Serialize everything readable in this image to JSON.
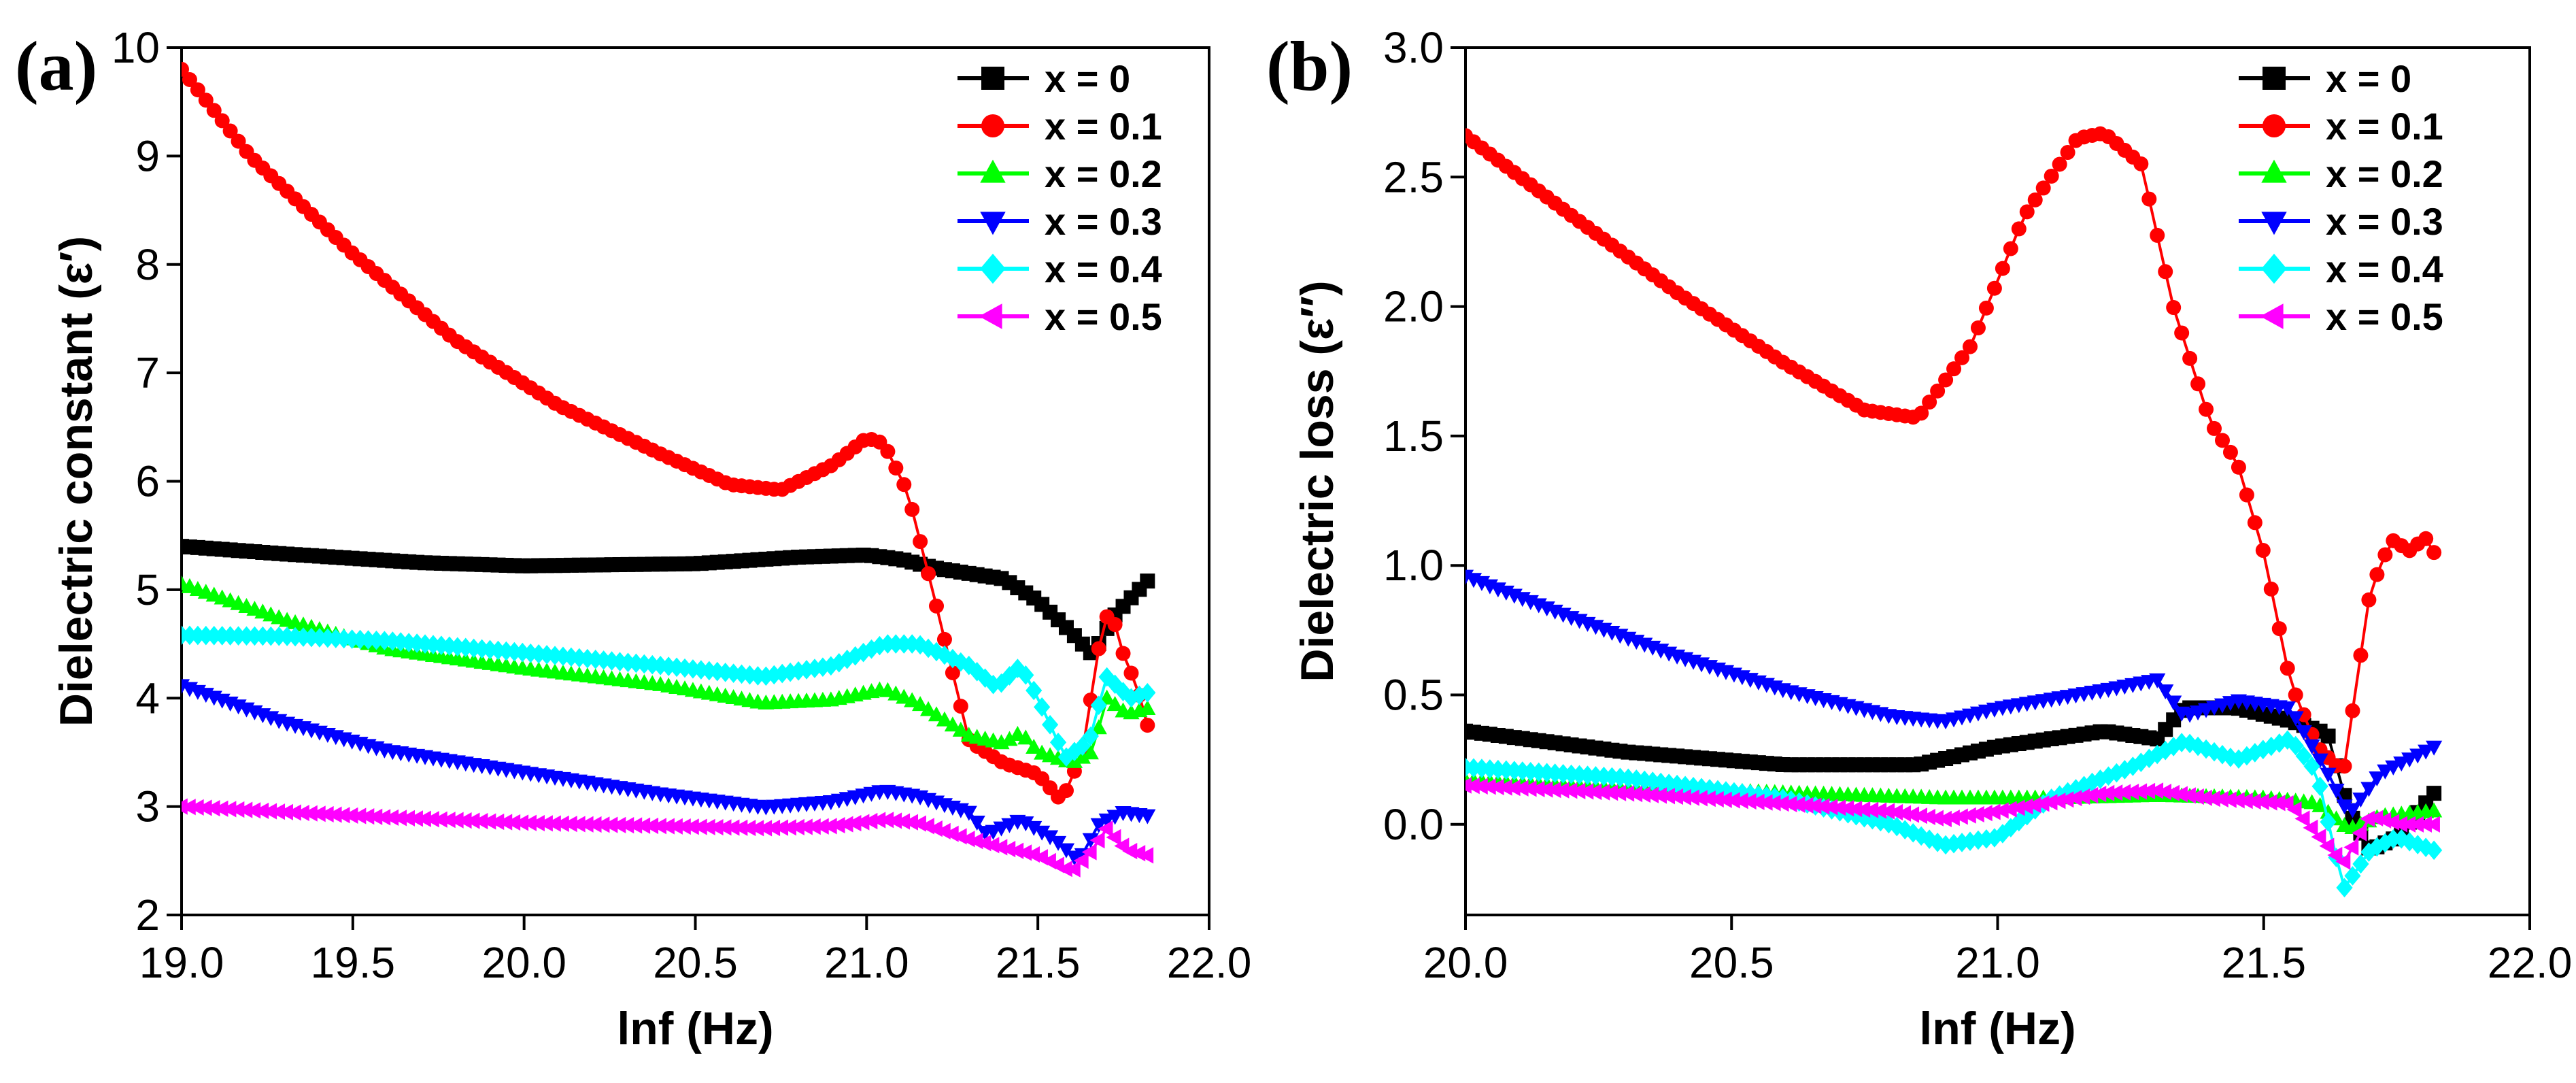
{
  "chart_data": [
    {
      "type": "line",
      "panel_label": "(a)",
      "title": "",
      "xlabel": "lnf (Hz)",
      "ylabel": "Dielectric constant (ε′)",
      "xlim": [
        19.0,
        22.0
      ],
      "ylim": [
        2,
        10
      ],
      "xticks": [
        "19.0",
        "19.5",
        "20.0",
        "20.5",
        "21.0",
        "21.5",
        "22.0"
      ],
      "yticks": [
        "2",
        "3",
        "4",
        "5",
        "6",
        "7",
        "8",
        "9",
        "10"
      ],
      "legend_position": "top-right",
      "x_start": 19.0,
      "x_end": 21.82,
      "n_points": 120,
      "series": [
        {
          "name": "x = 0",
          "color": "#000000",
          "marker": "square",
          "points": [
            [
              19.0,
              5.4
            ],
            [
              19.3,
              5.33
            ],
            [
              19.7,
              5.25
            ],
            [
              20.0,
              5.22
            ],
            [
              20.5,
              5.24
            ],
            [
              20.8,
              5.3
            ],
            [
              21.0,
              5.32
            ],
            [
              21.1,
              5.28
            ],
            [
              21.2,
              5.2
            ],
            [
              21.3,
              5.15
            ],
            [
              21.4,
              5.1
            ],
            [
              21.5,
              4.9
            ],
            [
              21.6,
              4.6
            ],
            [
              21.66,
              4.4
            ],
            [
              21.72,
              4.75
            ],
            [
              21.78,
              4.95
            ],
            [
              21.82,
              5.08
            ]
          ]
        },
        {
          "name": "x = 0.1",
          "color": "#ff0000",
          "marker": "circle",
          "points": [
            [
              19.0,
              9.8
            ],
            [
              19.2,
              9.0
            ],
            [
              19.5,
              8.1
            ],
            [
              19.8,
              7.3
            ],
            [
              20.1,
              6.7
            ],
            [
              20.4,
              6.25
            ],
            [
              20.6,
              5.97
            ],
            [
              20.75,
              5.92
            ],
            [
              20.9,
              6.15
            ],
            [
              21.0,
              6.4
            ],
            [
              21.05,
              6.35
            ],
            [
              21.12,
              5.9
            ],
            [
              21.2,
              4.9
            ],
            [
              21.3,
              3.6
            ],
            [
              21.4,
              3.4
            ],
            [
              21.5,
              3.3
            ],
            [
              21.57,
              3.05
            ],
            [
              21.63,
              3.5
            ],
            [
              21.68,
              4.5
            ],
            [
              21.71,
              4.85
            ],
            [
              21.75,
              4.4
            ],
            [
              21.79,
              4.1
            ],
            [
              21.82,
              3.75
            ]
          ]
        },
        {
          "name": "x = 0.2",
          "color": "#00ff00",
          "marker": "triangle-up",
          "points": [
            [
              19.0,
              5.05
            ],
            [
              19.3,
              4.72
            ],
            [
              19.6,
              4.45
            ],
            [
              20.0,
              4.27
            ],
            [
              20.4,
              4.12
            ],
            [
              20.7,
              3.95
            ],
            [
              20.9,
              3.98
            ],
            [
              21.05,
              4.08
            ],
            [
              21.15,
              3.95
            ],
            [
              21.3,
              3.65
            ],
            [
              21.4,
              3.58
            ],
            [
              21.45,
              3.68
            ],
            [
              21.5,
              3.5
            ],
            [
              21.6,
              3.4
            ],
            [
              21.66,
              3.5
            ],
            [
              21.7,
              4.0
            ],
            [
              21.76,
              3.85
            ],
            [
              21.82,
              3.9
            ]
          ]
        },
        {
          "name": "x = 0.3",
          "color": "#0000ff",
          "marker": "triangle-down",
          "points": [
            [
              19.0,
              4.12
            ],
            [
              19.3,
              3.78
            ],
            [
              19.6,
              3.52
            ],
            [
              20.0,
              3.32
            ],
            [
              20.4,
              3.12
            ],
            [
              20.7,
              3.0
            ],
            [
              20.9,
              3.05
            ],
            [
              21.05,
              3.15
            ],
            [
              21.15,
              3.1
            ],
            [
              21.3,
              2.95
            ],
            [
              21.35,
              2.75
            ],
            [
              21.45,
              2.88
            ],
            [
              21.55,
              2.7
            ],
            [
              21.62,
              2.5
            ],
            [
              21.68,
              2.85
            ],
            [
              21.75,
              2.95
            ],
            [
              21.82,
              2.92
            ]
          ]
        },
        {
          "name": "x = 0.4",
          "color": "#00ffff",
          "marker": "diamond",
          "points": [
            [
              19.0,
              4.58
            ],
            [
              19.3,
              4.57
            ],
            [
              19.6,
              4.53
            ],
            [
              20.0,
              4.42
            ],
            [
              20.4,
              4.3
            ],
            [
              20.7,
              4.2
            ],
            [
              20.9,
              4.3
            ],
            [
              21.05,
              4.5
            ],
            [
              21.15,
              4.5
            ],
            [
              21.3,
              4.3
            ],
            [
              21.38,
              4.1
            ],
            [
              21.45,
              4.3
            ],
            [
              21.5,
              4.0
            ],
            [
              21.58,
              3.45
            ],
            [
              21.65,
              3.6
            ],
            [
              21.7,
              4.2
            ],
            [
              21.77,
              4.0
            ],
            [
              21.82,
              4.05
            ]
          ]
        },
        {
          "name": "x = 0.5",
          "color": "#ff00ff",
          "marker": "triangle-left",
          "points": [
            [
              19.0,
              3.0
            ],
            [
              19.3,
              2.95
            ],
            [
              19.6,
              2.9
            ],
            [
              20.0,
              2.85
            ],
            [
              20.4,
              2.82
            ],
            [
              20.7,
              2.8
            ],
            [
              20.9,
              2.82
            ],
            [
              21.05,
              2.88
            ],
            [
              21.15,
              2.85
            ],
            [
              21.3,
              2.7
            ],
            [
              21.4,
              2.62
            ],
            [
              21.5,
              2.55
            ],
            [
              21.6,
              2.4
            ],
            [
              21.66,
              2.6
            ],
            [
              21.7,
              2.8
            ],
            [
              21.76,
              2.6
            ],
            [
              21.82,
              2.55
            ]
          ]
        }
      ]
    },
    {
      "type": "line",
      "panel_label": "(b)",
      "title": "",
      "xlabel": "lnf (Hz)",
      "ylabel": "Dielectric loss (ε′′)",
      "xlim": [
        20.0,
        22.0
      ],
      "ylim": [
        -0.35,
        3.0
      ],
      "xticks": [
        "20.0",
        "20.5",
        "21.0",
        "21.5",
        "22.0"
      ],
      "yticks": [
        "0.0",
        "0.5",
        "1.0",
        "1.5",
        "2.0",
        "2.5",
        "3.0"
      ],
      "legend_position": "top-right",
      "x_start": 20.0,
      "x_end": 21.82,
      "n_points": 120,
      "series": [
        {
          "name": "x = 0",
          "color": "#000000",
          "marker": "square",
          "points": [
            [
              20.0,
              0.36
            ],
            [
              20.3,
              0.28
            ],
            [
              20.6,
              0.23
            ],
            [
              20.85,
              0.23
            ],
            [
              21.0,
              0.3
            ],
            [
              21.2,
              0.36
            ],
            [
              21.3,
              0.33
            ],
            [
              21.35,
              0.45
            ],
            [
              21.45,
              0.45
            ],
            [
              21.55,
              0.4
            ],
            [
              21.62,
              0.35
            ],
            [
              21.66,
              0.05
            ],
            [
              21.7,
              -0.1
            ],
            [
              21.75,
              -0.05
            ],
            [
              21.82,
              0.12
            ]
          ]
        },
        {
          "name": "x = 0.1",
          "color": "#ff0000",
          "marker": "circle",
          "points": [
            [
              20.0,
              2.66
            ],
            [
              20.2,
              2.35
            ],
            [
              20.4,
              2.05
            ],
            [
              20.6,
              1.78
            ],
            [
              20.75,
              1.6
            ],
            [
              20.85,
              1.57
            ],
            [
              20.95,
              1.85
            ],
            [
              21.05,
              2.35
            ],
            [
              21.15,
              2.65
            ],
            [
              21.2,
              2.67
            ],
            [
              21.27,
              2.55
            ],
            [
              21.33,
              2.0
            ],
            [
              21.4,
              1.55
            ],
            [
              21.45,
              1.4
            ],
            [
              21.5,
              1.05
            ],
            [
              21.55,
              0.55
            ],
            [
              21.6,
              0.3
            ],
            [
              21.65,
              0.2
            ],
            [
              21.7,
              0.9
            ],
            [
              21.74,
              1.1
            ],
            [
              21.78,
              1.05
            ],
            [
              21.8,
              1.12
            ],
            [
              21.82,
              1.05
            ]
          ]
        },
        {
          "name": "x = 0.2",
          "color": "#00ff00",
          "marker": "triangle-up",
          "points": [
            [
              20.0,
              0.17
            ],
            [
              20.3,
              0.14
            ],
            [
              20.6,
              0.12
            ],
            [
              20.9,
              0.1
            ],
            [
              21.1,
              0.1
            ],
            [
              21.3,
              0.11
            ],
            [
              21.5,
              0.1
            ],
            [
              21.6,
              0.08
            ],
            [
              21.66,
              -0.02
            ],
            [
              21.72,
              0.03
            ],
            [
              21.82,
              0.05
            ]
          ]
        },
        {
          "name": "x = 0.3",
          "color": "#0000ff",
          "marker": "triangle-down",
          "points": [
            [
              20.0,
              0.96
            ],
            [
              20.2,
              0.8
            ],
            [
              20.4,
              0.65
            ],
            [
              20.6,
              0.52
            ],
            [
              20.8,
              0.42
            ],
            [
              20.9,
              0.4
            ],
            [
              21.0,
              0.45
            ],
            [
              21.2,
              0.52
            ],
            [
              21.3,
              0.56
            ],
            [
              21.35,
              0.42
            ],
            [
              21.45,
              0.48
            ],
            [
              21.55,
              0.45
            ],
            [
              21.62,
              0.2
            ],
            [
              21.66,
              0.04
            ],
            [
              21.72,
              0.2
            ],
            [
              21.82,
              0.3
            ]
          ]
        },
        {
          "name": "x = 0.4",
          "color": "#00ffff",
          "marker": "diamond",
          "points": [
            [
              20.0,
              0.22
            ],
            [
              20.3,
              0.18
            ],
            [
              20.6,
              0.1
            ],
            [
              20.8,
              0.0
            ],
            [
              20.9,
              -0.08
            ],
            [
              21.0,
              -0.05
            ],
            [
              21.1,
              0.1
            ],
            [
              21.25,
              0.22
            ],
            [
              21.35,
              0.32
            ],
            [
              21.45,
              0.25
            ],
            [
              21.55,
              0.33
            ],
            [
              21.6,
              0.2
            ],
            [
              21.65,
              -0.25
            ],
            [
              21.7,
              -0.1
            ],
            [
              21.75,
              -0.05
            ],
            [
              21.82,
              -0.1
            ]
          ]
        },
        {
          "name": "x = 0.5",
          "color": "#ff00ff",
          "marker": "triangle-left",
          "points": [
            [
              20.0,
              0.15
            ],
            [
              20.3,
              0.12
            ],
            [
              20.6,
              0.08
            ],
            [
              20.8,
              0.05
            ],
            [
              20.9,
              0.02
            ],
            [
              21.0,
              0.05
            ],
            [
              21.2,
              0.12
            ],
            [
              21.3,
              0.13
            ],
            [
              21.4,
              0.1
            ],
            [
              21.55,
              0.08
            ],
            [
              21.65,
              -0.15
            ],
            [
              21.7,
              0.03
            ],
            [
              21.76,
              0.0
            ],
            [
              21.82,
              0.0
            ]
          ]
        }
      ]
    }
  ]
}
